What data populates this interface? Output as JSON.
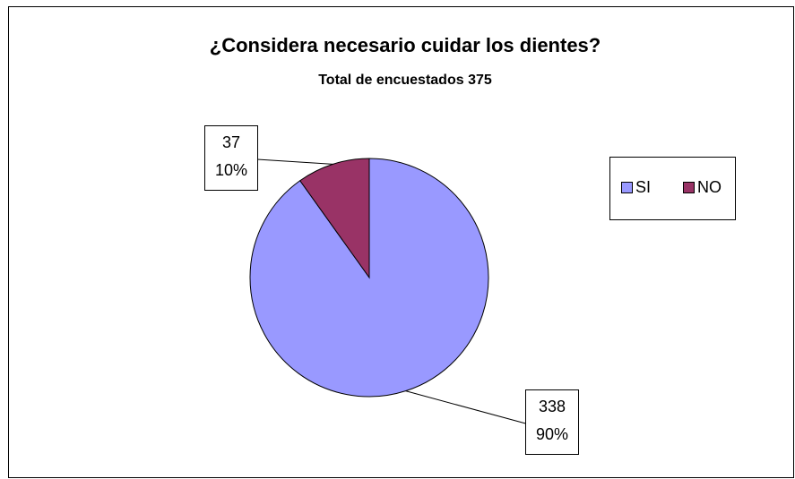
{
  "chart_data": {
    "type": "pie",
    "title": "¿Considera necesario cuidar los dientes?",
    "subtitle": "Total de encuestados 375",
    "categories": [
      "SI",
      "NO"
    ],
    "values": [
      338,
      37
    ],
    "percent_labels": [
      "90%",
      "10%"
    ],
    "colors": [
      "#9999ff",
      "#993366"
    ],
    "legend": "right"
  }
}
